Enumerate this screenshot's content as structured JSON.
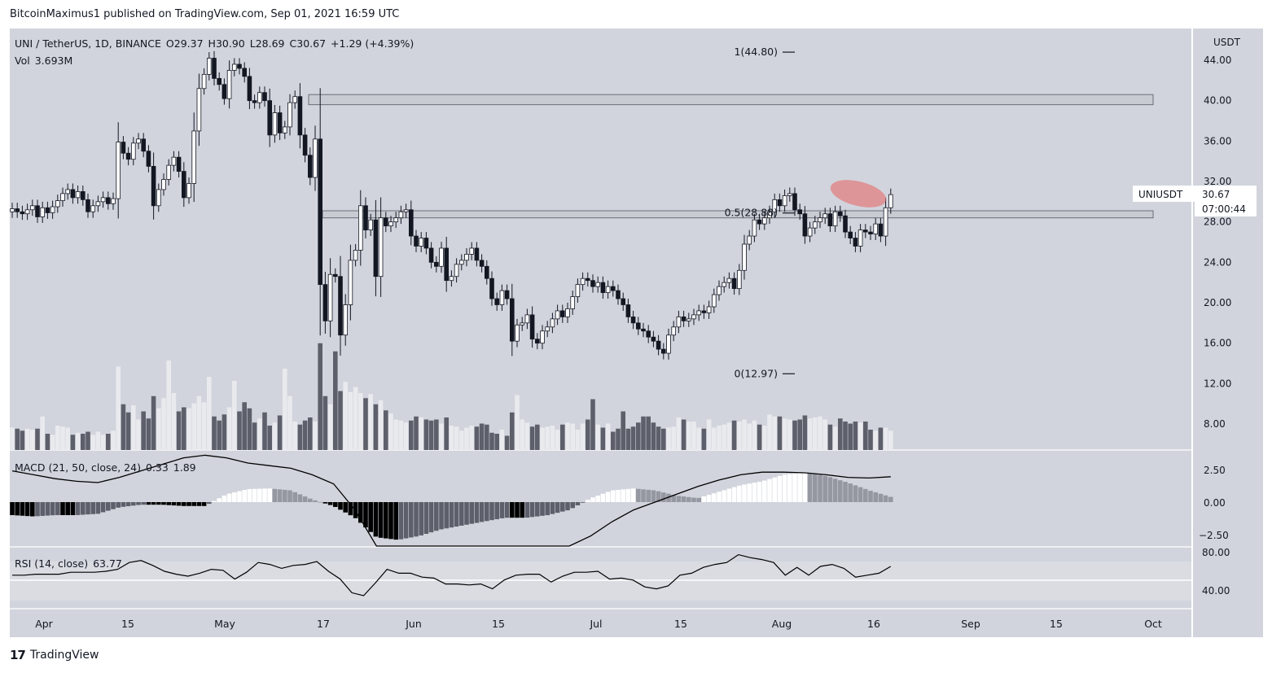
{
  "header": {
    "published_by": "BitcoinMaximus1 published on TradingView.com, Sep 01, 2021 16:59 UTC"
  },
  "legend": {
    "symbol": "UNI / TetherUS, 1D, BINANCE",
    "o_label": "O",
    "o": "29.37",
    "h_label": "H",
    "h": "30.90",
    "l_label": "L",
    "l": "28.69",
    "c_label": "C",
    "c": "30.67",
    "change": "+1.29 (+4.39%)",
    "vol_label": "Vol",
    "vol": "3.693M"
  },
  "currency": "USDT",
  "price_tag": {
    "symbol": "UNIUSDT",
    "price": "30.67",
    "countdown": "07:00:44"
  },
  "fib": [
    {
      "label": "1(44.80)",
      "value": 44.8
    },
    {
      "label": "0.5(28.88)",
      "value": 28.88
    },
    {
      "label": "0(12.97)",
      "value": 12.97
    }
  ],
  "macd": {
    "label": "MACD (21, 50, close, 24)",
    "v1": "0.33",
    "v2": "1.89",
    "ticks": [
      "2.50",
      "0.00",
      "−2.50"
    ]
  },
  "rsi": {
    "label": "RSI (14, close)",
    "value": "63.77",
    "ticks": [
      "80.00",
      "40.00"
    ]
  },
  "footer": {
    "logo": "17",
    "brand": "TradingView"
  },
  "colors": {
    "bg": "#d1d4dc",
    "candle_up": "#ffffff",
    "candle_down": "#131722",
    "vol_up": "#e9eaee",
    "vol_down": "#5d606b",
    "highlight": "#e57373"
  },
  "chart_data": {
    "type": "candlestick",
    "ylim": [
      4,
      48
    ],
    "price_ticks": [
      "44.00",
      "40.00",
      "36.00",
      "32.00",
      "28.00",
      "24.00",
      "20.00",
      "16.00",
      "12.00",
      "8.00"
    ],
    "x_ticks": [
      "Apr",
      "15",
      "May",
      "17",
      "Jun",
      "15",
      "Jul",
      "15",
      "Aug",
      "16",
      "Sep",
      "15",
      "Oct"
    ],
    "resistance_zones": [
      [
        39.6,
        40.6
      ],
      [
        28.4,
        29.1
      ]
    ],
    "closes": [
      29.3,
      29.0,
      28.8,
      29.2,
      29.6,
      28.5,
      29.4,
      28.9,
      29.5,
      30.1,
      30.8,
      31.2,
      30.4,
      31.0,
      30.2,
      29.0,
      29.6,
      30.0,
      30.4,
      29.8,
      30.3,
      35.9,
      34.8,
      34.2,
      35.8,
      36.2,
      35.0,
      33.5,
      29.6,
      31.2,
      32.2,
      33.6,
      34.4,
      33.0,
      30.4,
      31.8,
      37.0,
      41.2,
      42.6,
      44.2,
      42.2,
      41.6,
      40.2,
      43.0,
      43.6,
      43.2,
      42.4,
      40.0,
      39.8,
      40.8,
      40.0,
      36.6,
      38.8,
      36.8,
      37.4,
      39.8,
      40.4,
      36.6,
      34.6,
      32.4,
      36.2,
      21.8,
      18.2,
      22.8,
      22.6,
      16.8,
      19.8,
      24.2,
      25.2,
      29.6,
      27.2,
      28.2,
      22.6,
      28.4,
      27.6,
      28.0,
      28.4,
      29.0,
      29.2,
      26.6,
      25.6,
      26.4,
      25.4,
      24.0,
      23.6,
      25.4,
      22.2,
      22.6,
      23.8,
      24.2,
      24.8,
      25.4,
      24.2,
      23.6,
      22.4,
      20.4,
      19.8,
      21.2,
      20.4,
      16.2,
      17.8,
      18.0,
      18.8,
      16.4,
      16.0,
      17.2,
      17.6,
      18.4,
      19.2,
      18.6,
      19.4,
      20.6,
      21.8,
      22.4,
      22.2,
      21.6,
      22.0,
      21.0,
      21.6,
      21.2,
      20.4,
      19.8,
      18.6,
      18.0,
      17.4,
      17.2,
      16.6,
      16.2,
      15.4,
      15.0,
      16.8,
      17.6,
      18.6,
      18.2,
      18.4,
      18.8,
      19.2,
      19.0,
      19.6,
      20.8,
      21.6,
      22.0,
      22.4,
      21.4,
      23.2,
      25.8,
      26.6,
      28.2,
      27.8,
      28.4,
      29.0,
      30.2,
      29.6,
      30.6,
      30.8,
      29.2,
      28.8,
      26.6,
      27.4,
      28.0,
      28.4,
      28.8,
      27.6,
      29.0,
      28.6,
      27.0,
      26.4,
      25.6,
      27.2,
      27.0,
      26.8,
      27.8,
      26.6,
      29.4,
      30.7
    ],
    "volume": [
      2.2,
      2.1,
      1.9,
      2.1,
      2.0,
      2.1,
      3.3,
      1.6,
      1.5,
      2.4,
      2.3,
      2.2,
      1.5,
      1.7,
      1.6,
      1.8,
      1.5,
      1.8,
      1.5,
      1.6,
      1.9,
      8.2,
      4.5,
      3.7,
      4.4,
      3.0,
      3.8,
      3.1,
      5.3,
      4.1,
      5.1,
      8.8,
      5.6,
      3.8,
      4.2,
      4.1,
      4.6,
      5.3,
      4.7,
      7.2,
      3.3,
      2.9,
      3.5,
      4.2,
      6.8,
      3.8,
      4.7,
      4.1,
      2.7,
      3.1,
      3.7,
      2.4,
      2.7,
      3.4,
      8.0,
      5.3,
      2.8,
      2.5,
      2.9,
      3.2,
      2.8,
      10.5,
      5.3,
      4.5,
      9.7,
      5.8,
      6.7,
      5.7,
      6.2,
      5.6,
      5.1,
      5.5,
      4.5,
      4.9,
      3.9,
      3.6,
      3.0,
      2.9,
      2.7,
      2.9,
      3.3,
      3.2,
      3.0,
      2.9,
      3.0,
      2.6,
      3.2,
      2.4,
      2.3,
      1.9,
      2.2,
      2.4,
      2.3,
      2.6,
      2.5,
      1.7,
      1.6,
      2.0,
      1.4,
      3.7,
      5.4,
      3.0,
      2.7,
      2.3,
      2.5,
      2.2,
      2.3,
      2.4,
      2.0,
      2.5,
      2.7,
      2.6,
      2.0,
      2.6,
      3.0,
      5.0,
      2.5,
      2.2,
      2.6,
      1.8,
      2.1,
      3.8,
      2.1,
      2.3,
      2.7,
      3.3,
      3.3,
      2.7,
      2.3,
      2.1,
      2.2,
      2.3,
      3.2,
      3.0,
      2.8,
      2.8,
      2.2,
      2.1,
      3.0,
      2.2,
      2.4,
      2.5,
      2.7,
      2.9,
      2.8,
      3.0,
      2.6,
      2.9,
      2.5,
      2.4,
      3.5,
      3.3,
      3.3,
      3.1,
      3.0,
      2.9,
      3.0,
      3.4,
      3.1,
      3.2,
      3.3,
      3.0,
      2.5,
      2.3,
      3.1,
      2.8,
      2.6,
      2.8,
      2.7,
      2.8,
      2.0,
      1.9,
      2.2,
      2.2,
      1.9,
      1.7,
      1.8,
      2.3,
      3.0,
      2.7
    ],
    "macd_line": [
      2.4,
      2.1,
      1.8,
      1.6,
      1.5,
      1.9,
      2.4,
      2.9,
      3.4,
      3.6,
      3.4,
      3.0,
      2.8,
      2.6,
      2.1,
      1.4,
      -0.6,
      -3.6,
      -4.6,
      -4.9,
      -4.8,
      -4.6,
      -4.4,
      -4.1,
      -4.0,
      -3.8,
      -3.4,
      -2.6,
      -1.5,
      -0.6,
      0.0,
      0.6,
      1.2,
      1.7,
      2.1,
      2.3,
      2.3,
      2.25,
      2.1,
      1.9,
      1.85,
      1.95
    ],
    "macd_hist": [
      -1.0,
      -1.1,
      -1.0,
      -1.0,
      -0.9,
      -0.4,
      -0.2,
      -0.2,
      -0.3,
      -0.3,
      0.6,
      1.0,
      1.05,
      0.9,
      0.2,
      -0.3,
      -1.2,
      -2.7,
      -2.9,
      -2.6,
      -2.1,
      -1.8,
      -1.5,
      -1.2,
      -1.2,
      -1.0,
      -0.6,
      0.3,
      0.9,
      1.05,
      0.9,
      0.5,
      0.3,
      0.8,
      1.3,
      1.6,
      2.1,
      2.3,
      2.0,
      1.5,
      0.9,
      0.4
    ],
    "rsi": [
      56,
      56,
      57,
      57,
      57,
      59,
      59,
      59,
      60,
      62,
      69,
      71,
      66,
      60,
      57,
      55,
      58,
      62,
      61,
      52,
      59,
      69,
      67,
      63,
      66,
      67,
      70,
      60,
      52,
      38,
      35,
      48,
      62,
      58,
      58,
      54,
      53,
      47,
      47,
      46,
      47,
      42,
      51,
      56,
      57,
      57,
      49,
      55,
      59,
      59,
      60,
      52,
      53,
      51,
      44,
      42,
      45,
      56,
      58,
      64,
      67,
      69,
      77,
      74,
      72,
      69,
      56,
      64,
      56,
      65,
      67,
      63,
      54,
      56,
      58,
      65
    ]
  }
}
